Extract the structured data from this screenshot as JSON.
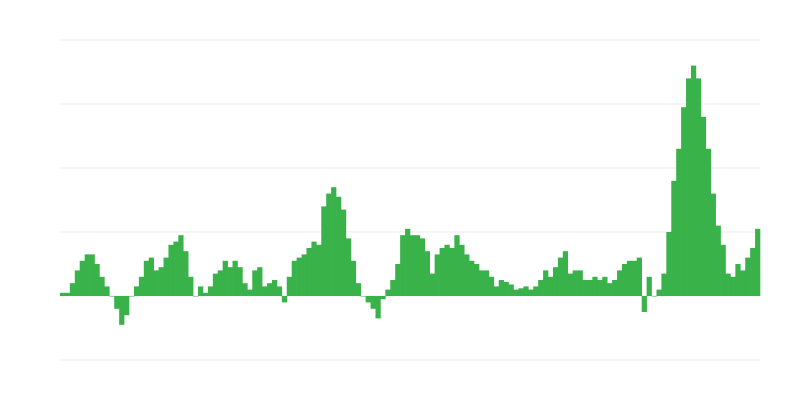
{
  "chart_data": {
    "type": "bar",
    "title": "",
    "xlabel": "",
    "ylabel": "",
    "ylim": [
      -1,
      4
    ],
    "grid": true,
    "gridlines": [
      -1,
      0,
      1,
      2,
      3,
      4
    ],
    "colors": {
      "bar": "#38b249",
      "grid": "#ebebeb"
    },
    "values": [
      0.05,
      0.05,
      0.2,
      0.4,
      0.55,
      0.65,
      0.65,
      0.5,
      0.3,
      0.15,
      0.0,
      -0.2,
      -0.45,
      -0.3,
      0.0,
      0.15,
      0.3,
      0.55,
      0.6,
      0.4,
      0.45,
      0.6,
      0.8,
      0.85,
      0.95,
      0.7,
      0.3,
      0.0,
      0.15,
      0.05,
      0.15,
      0.35,
      0.4,
      0.55,
      0.45,
      0.55,
      0.45,
      0.2,
      0.1,
      0.4,
      0.45,
      0.15,
      0.2,
      0.25,
      0.15,
      -0.1,
      0.3,
      0.55,
      0.6,
      0.65,
      0.75,
      0.85,
      0.8,
      1.4,
      1.6,
      1.7,
      1.55,
      1.35,
      0.9,
      0.55,
      0.2,
      0.0,
      -0.1,
      -0.2,
      -0.35,
      -0.05,
      0.1,
      0.25,
      0.5,
      0.95,
      1.05,
      0.95,
      0.95,
      0.9,
      0.7,
      0.35,
      0.65,
      0.75,
      0.8,
      0.75,
      0.95,
      0.8,
      0.65,
      0.55,
      0.5,
      0.4,
      0.4,
      0.3,
      0.15,
      0.25,
      0.22,
      0.18,
      0.1,
      0.12,
      0.15,
      0.1,
      0.15,
      0.25,
      0.4,
      0.3,
      0.45,
      0.6,
      0.7,
      0.35,
      0.4,
      0.4,
      0.25,
      0.25,
      0.3,
      0.25,
      0.3,
      0.2,
      0.25,
      0.4,
      0.5,
      0.55,
      0.55,
      0.6,
      -0.25,
      0.3,
      0.0,
      0.1,
      0.35,
      1.0,
      1.8,
      2.3,
      2.95,
      3.4,
      3.6,
      3.4,
      2.8,
      2.3,
      1.6,
      1.1,
      0.8,
      0.35,
      0.3,
      0.5,
      0.4,
      0.6,
      0.75,
      1.05
    ]
  }
}
